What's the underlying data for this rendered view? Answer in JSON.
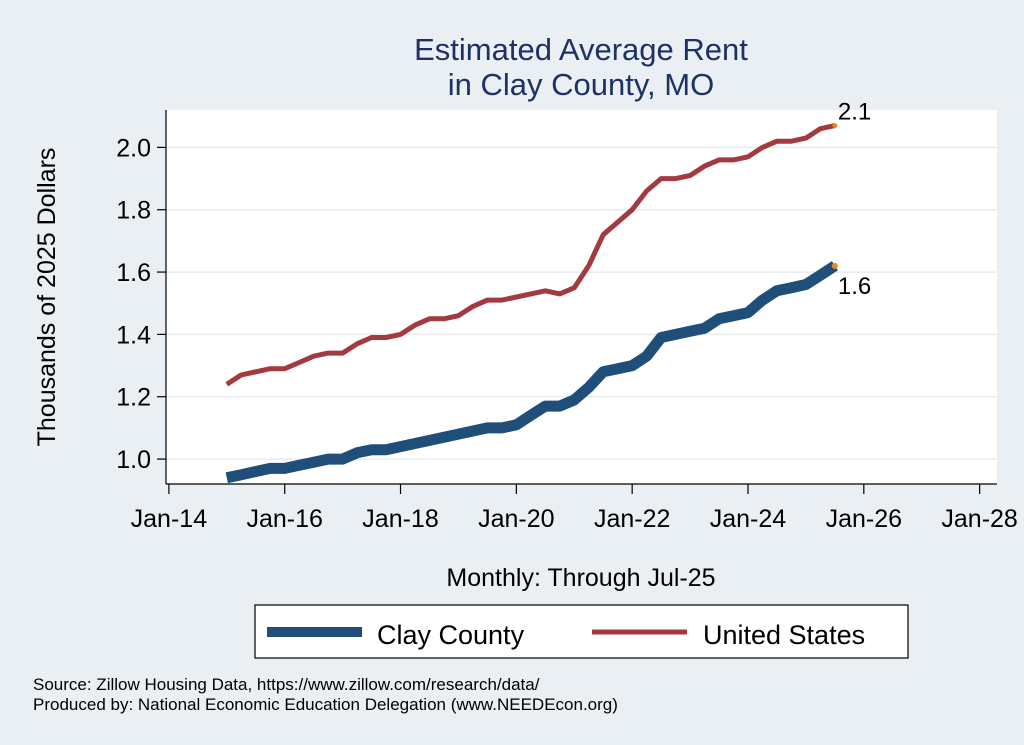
{
  "chart_data": {
    "type": "line",
    "title": [
      "Estimated Average Rent",
      "in Clay County, MO"
    ],
    "xlabel": "Monthly: Through Jul-25",
    "ylabel": "Thousands of 2025 Dollars",
    "x_ticks": [
      "Jan-14",
      "Jan-16",
      "Jan-18",
      "Jan-20",
      "Jan-22",
      "Jan-24",
      "Jan-26",
      "Jan-28"
    ],
    "x_tick_values": [
      2014,
      2016,
      2018,
      2020,
      2022,
      2024,
      2026,
      2028
    ],
    "y_ticks": [
      "1.0",
      "1.2",
      "1.4",
      "1.6",
      "1.8",
      "2.0"
    ],
    "y_tick_values": [
      1.0,
      1.2,
      1.4,
      1.6,
      1.8,
      2.0
    ],
    "xlim": [
      2013.95,
      2028.3
    ],
    "ylim": [
      0.92,
      2.12
    ],
    "grid": true,
    "legend_position": "bottom",
    "series": [
      {
        "name": "Clay County",
        "color": "#1f4e79",
        "end_label": "1.6",
        "points": [
          [
            2015.0,
            0.94
          ],
          [
            2015.25,
            0.95
          ],
          [
            2015.5,
            0.96
          ],
          [
            2015.75,
            0.97
          ],
          [
            2016.0,
            0.97
          ],
          [
            2016.25,
            0.98
          ],
          [
            2016.5,
            0.99
          ],
          [
            2016.75,
            1.0
          ],
          [
            2017.0,
            1.0
          ],
          [
            2017.25,
            1.02
          ],
          [
            2017.5,
            1.03
          ],
          [
            2017.75,
            1.03
          ],
          [
            2018.0,
            1.04
          ],
          [
            2018.25,
            1.05
          ],
          [
            2018.5,
            1.06
          ],
          [
            2018.75,
            1.07
          ],
          [
            2019.0,
            1.08
          ],
          [
            2019.25,
            1.09
          ],
          [
            2019.5,
            1.1
          ],
          [
            2019.75,
            1.1
          ],
          [
            2020.0,
            1.11
          ],
          [
            2020.25,
            1.14
          ],
          [
            2020.5,
            1.17
          ],
          [
            2020.75,
            1.17
          ],
          [
            2021.0,
            1.19
          ],
          [
            2021.25,
            1.23
          ],
          [
            2021.5,
            1.28
          ],
          [
            2021.75,
            1.29
          ],
          [
            2022.0,
            1.3
          ],
          [
            2022.25,
            1.33
          ],
          [
            2022.5,
            1.39
          ],
          [
            2022.75,
            1.4
          ],
          [
            2023.0,
            1.41
          ],
          [
            2023.25,
            1.42
          ],
          [
            2023.5,
            1.45
          ],
          [
            2023.75,
            1.46
          ],
          [
            2024.0,
            1.47
          ],
          [
            2024.25,
            1.51
          ],
          [
            2024.5,
            1.54
          ],
          [
            2024.75,
            1.55
          ],
          [
            2025.0,
            1.56
          ],
          [
            2025.25,
            1.59
          ],
          [
            2025.5,
            1.62
          ]
        ]
      },
      {
        "name": "United States",
        "color": "#a33a3f",
        "end_label": "2.1",
        "points": [
          [
            2015.0,
            1.24
          ],
          [
            2015.25,
            1.27
          ],
          [
            2015.5,
            1.28
          ],
          [
            2015.75,
            1.29
          ],
          [
            2016.0,
            1.29
          ],
          [
            2016.25,
            1.31
          ],
          [
            2016.5,
            1.33
          ],
          [
            2016.75,
            1.34
          ],
          [
            2017.0,
            1.34
          ],
          [
            2017.25,
            1.37
          ],
          [
            2017.5,
            1.39
          ],
          [
            2017.75,
            1.39
          ],
          [
            2018.0,
            1.4
          ],
          [
            2018.25,
            1.43
          ],
          [
            2018.5,
            1.45
          ],
          [
            2018.75,
            1.45
          ],
          [
            2019.0,
            1.46
          ],
          [
            2019.25,
            1.49
          ],
          [
            2019.5,
            1.51
          ],
          [
            2019.75,
            1.51
          ],
          [
            2020.0,
            1.52
          ],
          [
            2020.25,
            1.53
          ],
          [
            2020.5,
            1.54
          ],
          [
            2020.75,
            1.53
          ],
          [
            2021.0,
            1.55
          ],
          [
            2021.25,
            1.62
          ],
          [
            2021.5,
            1.72
          ],
          [
            2021.75,
            1.76
          ],
          [
            2022.0,
            1.8
          ],
          [
            2022.25,
            1.86
          ],
          [
            2022.5,
            1.9
          ],
          [
            2022.75,
            1.9
          ],
          [
            2023.0,
            1.91
          ],
          [
            2023.25,
            1.94
          ],
          [
            2023.5,
            1.96
          ],
          [
            2023.75,
            1.96
          ],
          [
            2024.0,
            1.97
          ],
          [
            2024.25,
            2.0
          ],
          [
            2024.5,
            2.02
          ],
          [
            2024.75,
            2.02
          ],
          [
            2025.0,
            2.03
          ],
          [
            2025.25,
            2.06
          ],
          [
            2025.5,
            2.07
          ]
        ]
      }
    ],
    "source_lines": [
      "Source: Zillow Housing Data, https://www.zillow.com/research/data/",
      "Produced by: National Economic Education Delegation (www.NEEDEcon.org)"
    ]
  }
}
